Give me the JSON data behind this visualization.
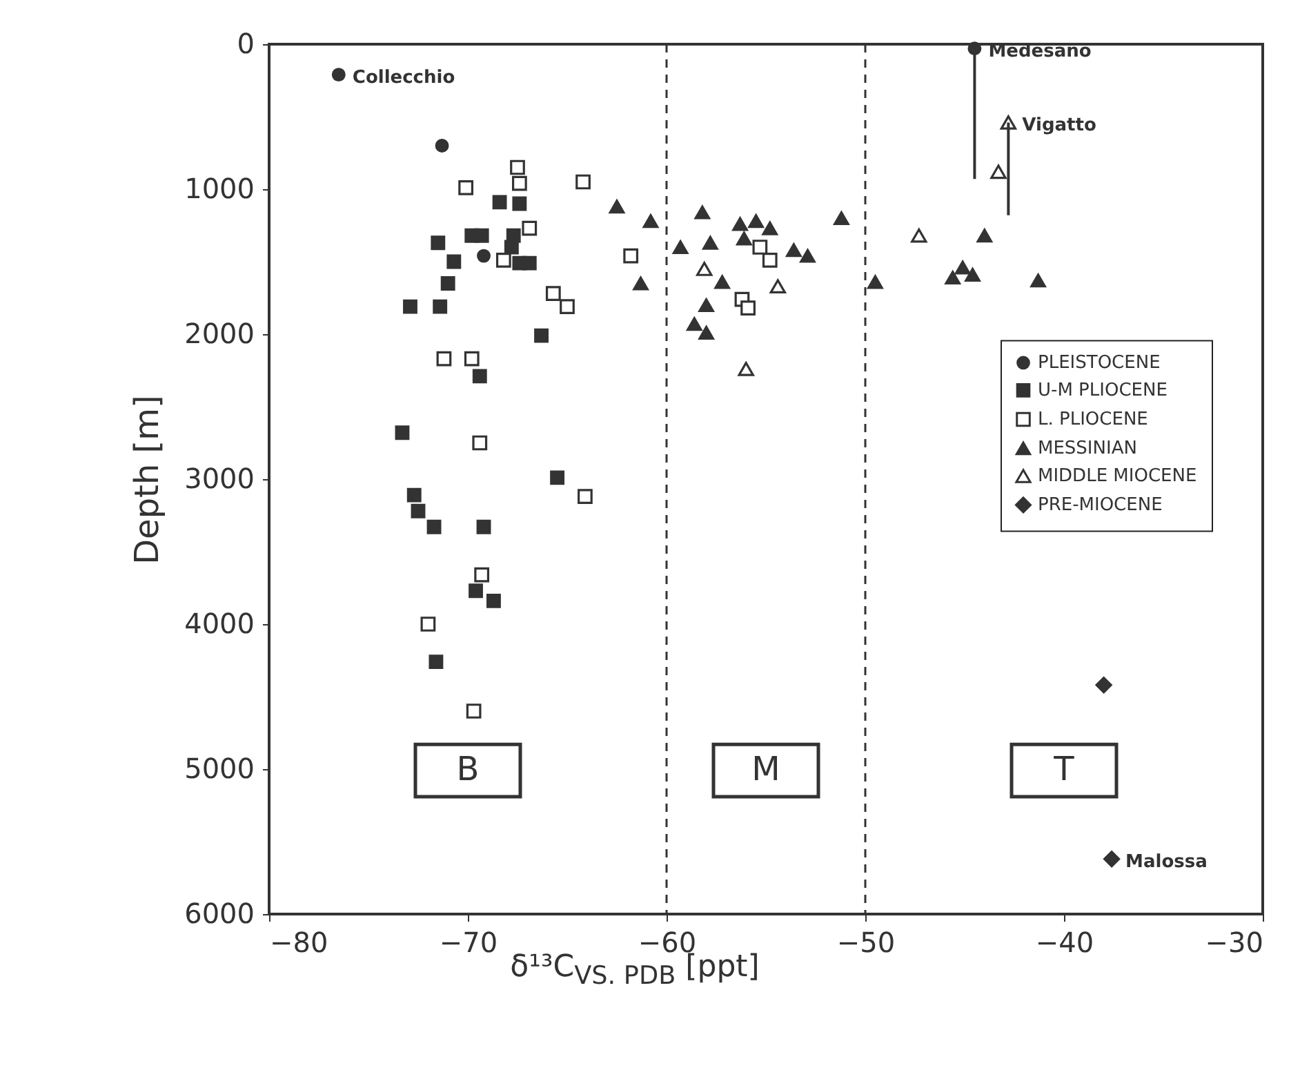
{
  "chart_data": {
    "type": "scatter",
    "xlabel": "δ¹³C$_{VS. PDB}$ [ppt]",
    "ylabel": "Depth [m]",
    "xlim": [
      -80,
      -30
    ],
    "xticks": [
      -80,
      -70,
      -60,
      -50,
      -40,
      -30
    ],
    "ylim": [
      6000,
      0
    ],
    "yticks": [
      0,
      1000,
      2000,
      3000,
      4000,
      5000,
      6000
    ],
    "grid": false,
    "legend": "right",
    "ref_lines": [
      {
        "axis": "x",
        "value": -60,
        "line_style": "dashed"
      },
      {
        "axis": "x",
        "value": -50,
        "line_style": "dashed"
      }
    ],
    "annotations": [
      "B",
      "M",
      "T",
      {
        "text": "Collecchio",
        "x": -76.5,
        "y": 210
      },
      {
        "text": "Medesano",
        "x": -44.5,
        "y": 30
      },
      {
        "text": "Vigatto",
        "x": -42.8,
        "y": 540
      },
      {
        "text": "Malossa",
        "x": -37.6,
        "y": 5620
      }
    ],
    "series": [
      {
        "name": "PLEISTOCENE",
        "color": "#333333",
        "marker": "circle",
        "x": [
          -76.5,
          -71.3,
          -69.2,
          -44.5
        ],
        "values": [
          210,
          700,
          1460,
          30
        ],
        "errors": [
          null,
          null,
          null,
          [
            30,
            930
          ]
        ]
      },
      {
        "name": "U-M PLIOCENE",
        "color": "#333333",
        "marker": "square",
        "x": [
          -68.4,
          -67.4,
          -69.8,
          -69.3,
          -71.5,
          -67.7,
          -67.8,
          -66.9,
          -67.4,
          -70.7,
          -71.0,
          -72.9,
          -71.4,
          -66.3,
          -69.4,
          -73.3,
          -65.5,
          -72.7,
          -72.5,
          -71.7,
          -69.2,
          -69.6,
          -68.7,
          -71.6
        ],
        "values": [
          1090,
          1100,
          1320,
          1320,
          1370,
          1320,
          1400,
          1510,
          1510,
          1500,
          1650,
          1810,
          1810,
          2010,
          2290,
          2680,
          2990,
          3110,
          3220,
          3330,
          3330,
          3770,
          3840,
          4260
        ]
      },
      {
        "name": "L. PLIOCENE",
        "color": "#333333",
        "marker": "square-open",
        "x": [
          -67.5,
          -70.1,
          -67.4,
          -64.2,
          -66.9,
          -68.2,
          -61.8,
          -65.7,
          -65.0,
          -71.2,
          -69.8,
          -69.4,
          -64.1,
          -69.3,
          -72.0,
          -69.7,
          -55.3,
          -54.8,
          -56.2,
          -55.9
        ],
        "values": [
          850,
          990,
          960,
          950,
          1270,
          1490,
          1460,
          1720,
          1810,
          2170,
          2170,
          2750,
          3120,
          3660,
          4000,
          4600,
          1400,
          1490,
          1760,
          1820
        ]
      },
      {
        "name": "MESSINIAN",
        "color": "#333333",
        "marker": "triangle",
        "x": [
          -62.5,
          -60.8,
          -61.3,
          -58.2,
          -59.3,
          -57.8,
          -56.3,
          -55.5,
          -54.8,
          -56.1,
          -53.6,
          -52.9,
          -51.2,
          -57.2,
          -58.0,
          -58.6,
          -58.0,
          -49.5,
          -44.0,
          -45.6,
          -45.1,
          -44.6,
          -41.3
        ],
        "values": [
          1120,
          1220,
          1650,
          1160,
          1400,
          1370,
          1240,
          1220,
          1270,
          1340,
          1420,
          1460,
          1200,
          1640,
          1800,
          1930,
          1990,
          1640,
          1320,
          1610,
          1540,
          1590,
          1630
        ]
      },
      {
        "name": "MIDDLE MIOCENE",
        "color": "#333333",
        "marker": "triangle-open",
        "x": [
          -58.1,
          -54.4,
          -56.0,
          -47.3,
          -43.3,
          -42.8
        ],
        "values": [
          1550,
          1670,
          2240,
          1320,
          880,
          540
        ],
        "errors": [
          null,
          null,
          null,
          null,
          null,
          [
            540,
            1180
          ]
        ]
      },
      {
        "name": "PRE-MIOCENE",
        "color": "#333333",
        "marker": "diamond",
        "x": [
          -38.0,
          -37.6
        ],
        "values": [
          4420,
          5620
        ]
      }
    ]
  }
}
